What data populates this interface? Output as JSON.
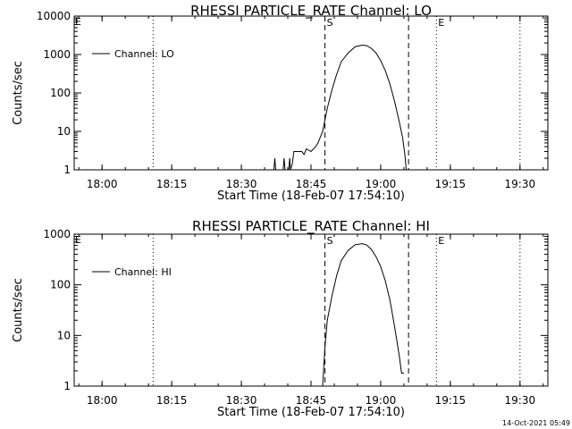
{
  "footer": {
    "timestamp": "14-Oct-2021 05:49"
  },
  "chart_data": [
    {
      "type": "line",
      "title": "RHESSI PARTICLE_RATE Channel: LO",
      "xlabel": "Start Time (18-Feb-07 17:54:10)",
      "ylabel": "Counts/sec",
      "y_scale": "log",
      "xlim": [
        "17:54",
        "19:36"
      ],
      "ylim": [
        1,
        10000
      ],
      "x_ticks": [
        "18:00",
        "18:15",
        "18:30",
        "18:45",
        "19:00",
        "19:15",
        "19:30"
      ],
      "y_ticks": [
        {
          "value": 1,
          "label": "1"
        },
        {
          "value": 10,
          "label": "10"
        },
        {
          "value": 100,
          "label": "100"
        },
        {
          "value": 1000,
          "label": "1000"
        },
        {
          "value": 10000,
          "label": "10000"
        }
      ],
      "legend": {
        "position": "top-left",
        "label": "Channel: LO"
      },
      "markers": [
        {
          "time": "18:11",
          "style": "dotted",
          "label": ""
        },
        {
          "time": "18:48",
          "style": "dashed",
          "label": "S"
        },
        {
          "time": "19:06",
          "style": "dashed",
          "label": ""
        },
        {
          "time": "19:12",
          "style": "dotted",
          "label": "E"
        },
        {
          "time": "19:30",
          "style": "dotted",
          "label": ""
        }
      ],
      "corner_label": "E",
      "series": [
        {
          "color": "#000000",
          "points": [
            [
              "18:37",
              1
            ],
            [
              "18:37.2",
              2
            ],
            [
              "18:37.4",
              1
            ],
            [
              "18:39",
              1
            ],
            [
              "18:39.2",
              2
            ],
            [
              "18:39.4",
              1
            ],
            [
              "18:40.2",
              1
            ],
            [
              "18:40.4",
              2
            ],
            [
              "18:40.6",
              1
            ],
            [
              "18:41",
              1.5
            ],
            [
              "18:41.3",
              3
            ],
            [
              "18:42",
              3
            ],
            [
              "18:43",
              3
            ],
            [
              "18:43.5",
              2.5
            ],
            [
              "18:44",
              3.5
            ],
            [
              "18:45",
              3
            ],
            [
              "18:46",
              4
            ],
            [
              "18:46.5",
              5
            ],
            [
              "18:47.5",
              10
            ],
            [
              "18:48.5",
              40
            ],
            [
              "18:49.5",
              120
            ],
            [
              "18:50.5",
              300
            ],
            [
              "18:51.5",
              650
            ],
            [
              "18:53",
              1100
            ],
            [
              "18:54.5",
              1600
            ],
            [
              "18:56",
              1750
            ],
            [
              "18:57",
              1700
            ],
            [
              "18:58",
              1450
            ],
            [
              "18:59",
              1100
            ],
            [
              "19:00",
              700
            ],
            [
              "19:01",
              380
            ],
            [
              "19:02",
              170
            ],
            [
              "19:03",
              60
            ],
            [
              "19:04",
              18
            ],
            [
              "19:04.7",
              7
            ],
            [
              "19:05.2",
              2.5
            ],
            [
              "19:05.5",
              1
            ]
          ]
        }
      ]
    },
    {
      "type": "line",
      "title": "RHESSI PARTICLE_RATE Channel: HI",
      "xlabel": "Start Time (18-Feb-07 17:54:10)",
      "ylabel": "Counts/sec",
      "y_scale": "log",
      "xlim": [
        "17:54",
        "19:36"
      ],
      "ylim": [
        1,
        1000
      ],
      "x_ticks": [
        "18:00",
        "18:15",
        "18:30",
        "18:45",
        "19:00",
        "19:15",
        "19:30"
      ],
      "y_ticks": [
        {
          "value": 1,
          "label": "1"
        },
        {
          "value": 10,
          "label": "10"
        },
        {
          "value": 100,
          "label": "100"
        },
        {
          "value": 1000,
          "label": "1000"
        }
      ],
      "legend": {
        "position": "top-left",
        "label": "Channel: HI"
      },
      "markers": [
        {
          "time": "18:11",
          "style": "dotted",
          "label": ""
        },
        {
          "time": "18:48",
          "style": "dashed",
          "label": "S"
        },
        {
          "time": "19:06",
          "style": "dashed",
          "label": ""
        },
        {
          "time": "19:12",
          "style": "dotted",
          "label": "E"
        },
        {
          "time": "19:30",
          "style": "dotted",
          "label": ""
        }
      ],
      "corner_label": "E",
      "series": [
        {
          "color": "#000000",
          "points": [
            [
              "18:47.5",
              1
            ],
            [
              "18:48",
              6
            ],
            [
              "18:48.5",
              20
            ],
            [
              "18:49.5",
              60
            ],
            [
              "18:50.5",
              150
            ],
            [
              "18:51.5",
              300
            ],
            [
              "18:53",
              480
            ],
            [
              "18:54.5",
              620
            ],
            [
              "18:56",
              650
            ],
            [
              "18:57",
              610
            ],
            [
              "18:58",
              500
            ],
            [
              "18:59",
              360
            ],
            [
              "19:00",
              230
            ],
            [
              "19:01",
              120
            ],
            [
              "19:02",
              50
            ],
            [
              "19:03",
              15
            ],
            [
              "19:04",
              4
            ],
            [
              "19:04.5",
              1.8
            ],
            [
              "19:05",
              1.8
            ]
          ]
        }
      ]
    }
  ]
}
